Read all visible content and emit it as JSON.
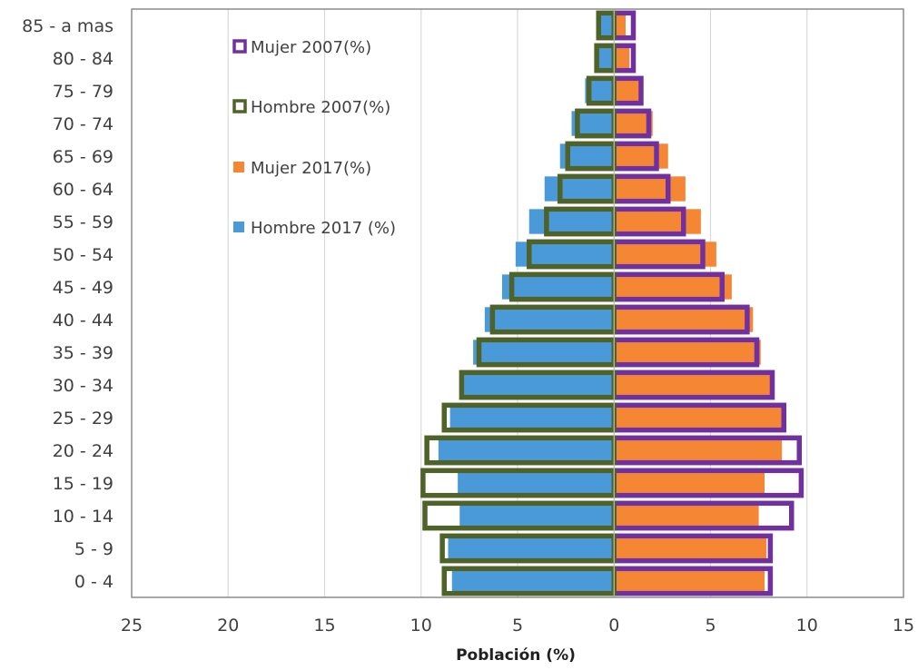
{
  "chart_data": {
    "type": "bar",
    "orientation": "horizontal",
    "categories": [
      "0 - 4",
      "5  - 9",
      "10 - 14",
      "15 - 19",
      "20 - 24",
      "25 - 29",
      "30 - 34",
      "35 - 39",
      "40 - 44",
      "45 - 49",
      "50 - 54",
      "55 - 59",
      "60 - 64",
      "65 - 69",
      "70 - 74",
      "75 - 79",
      "80 - 84",
      "85 - a mas"
    ],
    "series": [
      {
        "name": "Mujer 2007(%)",
        "style": "outline",
        "color": "#7030a0",
        "values": [
          8.1,
          8.1,
          9.2,
          9.7,
          9.6,
          8.8,
          8.2,
          7.4,
          6.9,
          5.6,
          4.6,
          3.6,
          2.8,
          2.2,
          1.8,
          1.4,
          1.0,
          1.0
        ]
      },
      {
        "name": "Hombre 2007(%)",
        "style": "outline",
        "color": "#4f6228",
        "values": [
          -8.8,
          -8.9,
          -9.8,
          -9.9,
          -9.7,
          -8.8,
          -7.9,
          -7.0,
          -6.3,
          -5.3,
          -4.4,
          -3.5,
          -2.8,
          -2.4,
          -1.9,
          -1.3,
          -0.9,
          -0.8
        ]
      },
      {
        "name": "Mujer 2017(%)",
        "style": "fill",
        "color": "#f58634",
        "values": [
          7.8,
          7.9,
          7.5,
          7.8,
          8.7,
          8.7,
          8.1,
          7.6,
          7.2,
          6.1,
          5.3,
          4.5,
          3.7,
          2.8,
          2.0,
          1.3,
          0.8,
          0.6
        ]
      },
      {
        "name": "Hombre 2017 (%)",
        "style": "fill",
        "color": "#4a9ad9",
        "values": [
          -8.4,
          -8.6,
          -8.0,
          -8.1,
          -9.1,
          -8.5,
          -7.9,
          -7.3,
          -6.7,
          -5.8,
          -5.1,
          -4.4,
          -3.6,
          -2.8,
          -2.2,
          -1.5,
          -1.0,
          -0.8
        ]
      }
    ],
    "xlabel": "Población (%)",
    "xlim": [
      -25,
      15
    ],
    "xticks": [
      -25,
      -20,
      -15,
      -10,
      -5,
      0,
      5,
      10,
      15
    ],
    "xtick_labels": [
      "25",
      "20",
      "15",
      "10",
      "5",
      "0",
      "5",
      "10",
      "15"
    ],
    "grid": true,
    "legend_position": "top-left-inside"
  }
}
